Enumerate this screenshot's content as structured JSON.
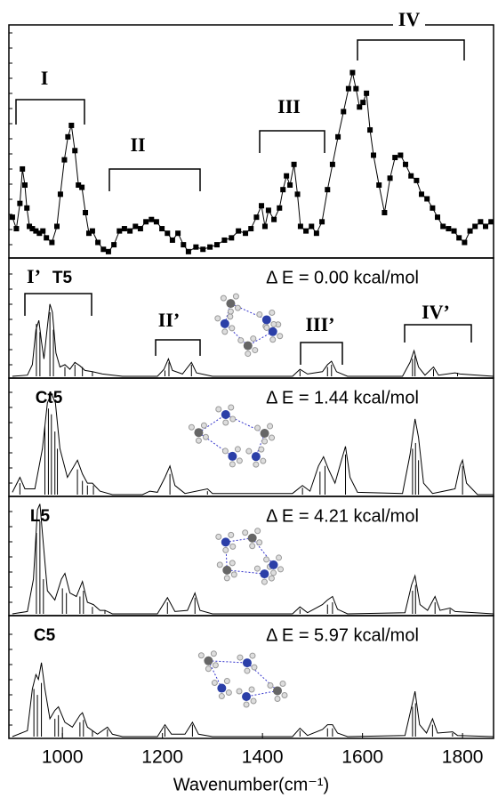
{
  "chart_data": [
    {
      "type": "line",
      "marker": "square",
      "color": "#000000",
      "xlim": [
        893,
        1862
      ],
      "ylim": [
        0,
        100
      ],
      "annotations": [
        "I",
        "II",
        "III",
        "IV"
      ],
      "x": [
        900,
        908,
        915,
        920,
        925,
        929,
        934,
        940,
        947,
        954,
        961,
        968,
        979,
        989,
        996,
        1004,
        1011,
        1018,
        1025,
        1032,
        1039,
        1046,
        1053,
        1060,
        1071,
        1082,
        1092,
        1103,
        1114,
        1124,
        1135,
        1146,
        1156,
        1167,
        1178,
        1188,
        1199,
        1210,
        1220,
        1231,
        1242,
        1252,
        1267,
        1281,
        1295,
        1309,
        1324,
        1338,
        1352,
        1366,
        1377,
        1388,
        1398,
        1405,
        1412,
        1423,
        1434,
        1441,
        1448,
        1455,
        1463,
        1470,
        1476,
        1487,
        1498,
        1508,
        1519,
        1530,
        1540,
        1551,
        1562,
        1572,
        1580,
        1587,
        1594,
        1601,
        1608,
        1615,
        1622,
        1633,
        1644,
        1655,
        1665,
        1676,
        1686,
        1697,
        1708,
        1718,
        1729,
        1740,
        1750,
        1761,
        1772,
        1783,
        1793,
        1804,
        1815,
        1825,
        1836,
        1846,
        1857
      ],
      "values": [
        17,
        12,
        23,
        38,
        31,
        21,
        13,
        12,
        11,
        10,
        11,
        8,
        6,
        13,
        27,
        42,
        52,
        57,
        46,
        31,
        30,
        19,
        10,
        11,
        6,
        3,
        2,
        5,
        11,
        12,
        11,
        13,
        12,
        15,
        16,
        15,
        12,
        10,
        7,
        10,
        5,
        2,
        4,
        3,
        4,
        5,
        7,
        8,
        11,
        10,
        12,
        17,
        22,
        13,
        20,
        16,
        21,
        29,
        35,
        31,
        40,
        27,
        13,
        11,
        13,
        10,
        15,
        29,
        40,
        52,
        63,
        73,
        80,
        73,
        65,
        67,
        71,
        55,
        44,
        31,
        19,
        34,
        43,
        44,
        40,
        35,
        33,
        27,
        25,
        21,
        17,
        13,
        12,
        11,
        8,
        6,
        11,
        13,
        15,
        13,
        15
      ]
    },
    {
      "type": "spectrum",
      "color": "#000000",
      "title": "T5",
      "energy": "Δ E = 0.00 kcal/mol",
      "xlim": [
        893,
        1862
      ],
      "ylim": [
        0,
        100
      ],
      "annotations": [
        "I’",
        "II’",
        "III’",
        "IV’"
      ],
      "x": [
        900,
        930,
        940,
        947,
        953,
        958,
        963,
        968,
        975,
        980,
        987,
        995,
        1005,
        1015,
        1025,
        1035,
        1045,
        1060,
        1080,
        1120,
        1190,
        1203,
        1212,
        1220,
        1240,
        1258,
        1268,
        1300,
        1460,
        1475,
        1490,
        1520,
        1530,
        1538,
        1548,
        1570,
        1680,
        1695,
        1703,
        1712,
        1725,
        1742,
        1752,
        1785,
        1795,
        1862
      ],
      "values": [
        0,
        1,
        10,
        40,
        48,
        30,
        15,
        35,
        62,
        55,
        20,
        8,
        10,
        6,
        12,
        9,
        5,
        4,
        2,
        0,
        0,
        6,
        15,
        5,
        2,
        12,
        3,
        0,
        0,
        6,
        2,
        4,
        10,
        13,
        4,
        0,
        0,
        12,
        22,
        8,
        1,
        8,
        1,
        3,
        2,
        0
      ],
      "sticks": {
        "x": [
          948,
          955,
          975,
          982,
          1005,
          1025,
          1040,
          1060,
          1205,
          1213,
          1258,
          1475,
          1530,
          1538,
          1700,
          1705,
          1742,
          1790
        ],
        "values": [
          45,
          38,
          55,
          40,
          8,
          10,
          8,
          4,
          5,
          12,
          10,
          5,
          8,
          10,
          15,
          18,
          6,
          3
        ]
      }
    },
    {
      "type": "spectrum",
      "color": "#000000",
      "title": "Ct5",
      "energy": "Δ E = 1.44 kcal/mol",
      "xlim": [
        893,
        1862
      ],
      "ylim": [
        0,
        100
      ],
      "x": [
        900,
        915,
        925,
        945,
        960,
        970,
        978,
        986,
        995,
        1010,
        1030,
        1040,
        1050,
        1060,
        1075,
        1100,
        1160,
        1175,
        1190,
        1205,
        1215,
        1225,
        1245,
        1290,
        1300,
        1460,
        1480,
        1495,
        1512,
        1522,
        1532,
        1545,
        1558,
        1566,
        1575,
        1590,
        1680,
        1695,
        1705,
        1712,
        1722,
        1740,
        1785,
        1795,
        1800,
        1808,
        1830,
        1862
      ],
      "values": [
        2,
        15,
        5,
        5,
        40,
        80,
        88,
        80,
        40,
        15,
        30,
        18,
        10,
        10,
        3,
        0,
        0,
        3,
        2,
        15,
        25,
        8,
        1,
        5,
        1,
        1,
        8,
        3,
        25,
        33,
        22,
        10,
        30,
        42,
        15,
        2,
        1,
        35,
        66,
        50,
        10,
        1,
        5,
        25,
        30,
        10,
        0,
        0
      ],
      "sticks": {
        "x": [
          915,
          965,
          972,
          978,
          985,
          990,
          1030,
          1040,
          1050,
          1062,
          1215,
          1290,
          1480,
          1515,
          1525,
          1566,
          1700,
          1706,
          1712,
          1800
        ],
        "values": [
          10,
          60,
          75,
          70,
          55,
          40,
          22,
          12,
          8,
          8,
          18,
          3,
          6,
          20,
          25,
          35,
          40,
          45,
          30,
          25
        ]
      }
    },
    {
      "type": "spectrum",
      "color": "#000000",
      "title": "L5",
      "energy": "Δ E = 4.21 kcal/mol",
      "xlim": [
        893,
        1862
      ],
      "ylim": [
        0,
        100
      ],
      "x": [
        900,
        930,
        942,
        950,
        955,
        962,
        970,
        985,
        998,
        1005,
        1015,
        1028,
        1040,
        1050,
        1062,
        1075,
        1085,
        1100,
        1190,
        1210,
        1225,
        1250,
        1265,
        1275,
        1300,
        1460,
        1475,
        1490,
        1520,
        1530,
        1540,
        1550,
        1570,
        1685,
        1698,
        1705,
        1715,
        1730,
        1745,
        1755,
        1775,
        1785,
        1862
      ],
      "values": [
        0,
        2,
        30,
        90,
        95,
        60,
        20,
        12,
        30,
        35,
        18,
        15,
        28,
        10,
        8,
        3,
        3,
        0,
        0,
        14,
        2,
        3,
        18,
        3,
        0,
        0,
        6,
        1,
        8,
        12,
        15,
        4,
        0,
        1,
        25,
        33,
        8,
        3,
        15,
        3,
        5,
        2,
        0
      ],
      "sticks": {
        "x": [
          948,
          955,
          962,
          1000,
          1008,
          1035,
          1042,
          1060,
          1085,
          1210,
          1265,
          1475,
          1530,
          1540,
          1700,
          1706,
          1745,
          1775
        ],
        "values": [
          70,
          80,
          30,
          22,
          18,
          15,
          20,
          6,
          3,
          10,
          14,
          4,
          8,
          10,
          20,
          25,
          10,
          4
        ]
      }
    },
    {
      "type": "spectrum",
      "color": "#000000",
      "title": "C5",
      "energy": "Δ E = 5.97 kcal/mol",
      "xlim": [
        893,
        1862
      ],
      "ylim": [
        0,
        100
      ],
      "xticks": [
        1000,
        1200,
        1400,
        1600,
        1800
      ],
      "x_label": "Wavenumber(cm⁻¹)",
      "x": [
        900,
        930,
        940,
        947,
        952,
        958,
        965,
        975,
        985,
        992,
        1005,
        1020,
        1035,
        1040,
        1050,
        1070,
        1090,
        1100,
        1120,
        1190,
        1205,
        1218,
        1245,
        1260,
        1272,
        1300,
        1460,
        1475,
        1490,
        1520,
        1530,
        1540,
        1550,
        1570,
        1685,
        1698,
        1705,
        1714,
        1728,
        1740,
        1750,
        1780,
        1790,
        1862
      ],
      "values": [
        0,
        5,
        40,
        52,
        48,
        62,
        40,
        15,
        22,
        25,
        12,
        8,
        18,
        20,
        8,
        2,
        8,
        2,
        0,
        0,
        10,
        2,
        2,
        12,
        2,
        0,
        0,
        7,
        1,
        6,
        10,
        10,
        3,
        0,
        1,
        25,
        38,
        10,
        3,
        15,
        3,
        4,
        1,
        0
      ],
      "sticks": {
        "x": [
          943,
          950,
          958,
          985,
          992,
          1000,
          1035,
          1042,
          1060,
          1090,
          1205,
          1260,
          1475,
          1530,
          1540,
          1700,
          1706,
          1740,
          1780
        ],
        "values": [
          40,
          35,
          45,
          15,
          18,
          8,
          12,
          14,
          5,
          6,
          8,
          10,
          5,
          7,
          7,
          25,
          28,
          10,
          3
        ]
      }
    }
  ]
}
